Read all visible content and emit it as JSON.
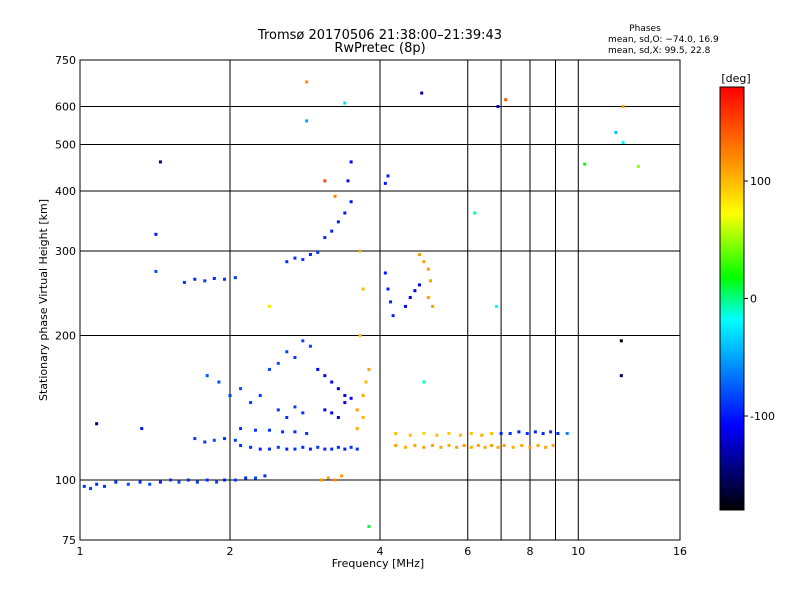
{
  "chart_data": {
    "type": "scatter",
    "title": "Tromsø 20170506 21:38:00–21:39:43",
    "subtitle": "RwPretec (8p)",
    "xlabel": "Frequency [MHz]",
    "ylabel": "Stationary phase Virtual Height [km]",
    "x_scale": "log",
    "y_scale": "log",
    "xlim": [
      1,
      16
    ],
    "ylim": [
      75,
      750
    ],
    "x_ticks": [
      1,
      2,
      4,
      6,
      8,
      10,
      16
    ],
    "x_gridlines": [
      2,
      4,
      6,
      7,
      8,
      9,
      10
    ],
    "y_ticks": [
      75,
      100,
      200,
      300,
      400,
      500,
      600,
      750
    ],
    "grid": true,
    "phase_stats": {
      "heading": "Phases",
      "line_o": "mean, sd,O:  −74.0, 16.9",
      "line_x": "mean, sd,X:   99.5, 22.8"
    },
    "colorbar": {
      "label": "[deg]",
      "range": [
        -180,
        180
      ],
      "ticks": [
        100,
        0,
        -100
      ],
      "colors": [
        "#ff0000",
        "#ffa500",
        "#ffff00",
        "#00ff00",
        "#00ffff",
        "#0064ff",
        "#0000ff",
        "#000000"
      ]
    },
    "series": [
      {
        "points": [
          [
            1.02,
            97,
            -90
          ],
          [
            1.05,
            96,
            -85
          ],
          [
            1.08,
            98,
            -95
          ],
          [
            1.12,
            97,
            -88
          ],
          [
            1.18,
            99,
            -92
          ],
          [
            1.25,
            98,
            -85
          ],
          [
            1.32,
            99,
            -90
          ],
          [
            1.38,
            98,
            -82
          ],
          [
            1.45,
            99,
            -95
          ],
          [
            1.52,
            100,
            -88
          ],
          [
            1.58,
            99,
            -80
          ],
          [
            1.65,
            100,
            -92
          ],
          [
            1.72,
            99,
            -86
          ],
          [
            1.8,
            100,
            -90
          ],
          [
            1.88,
            99,
            -84
          ],
          [
            1.95,
            100,
            -96
          ],
          [
            2.05,
            100,
            -88
          ],
          [
            2.15,
            101,
            -90
          ],
          [
            2.25,
            101,
            -82
          ],
          [
            2.35,
            102,
            -94
          ],
          [
            1.62,
            258,
            -90
          ],
          [
            1.7,
            262,
            -92
          ],
          [
            1.78,
            260,
            -88
          ],
          [
            1.86,
            263,
            -95
          ],
          [
            1.95,
            262,
            -90
          ],
          [
            2.05,
            264,
            -86
          ],
          [
            1.7,
            122,
            -85
          ],
          [
            1.78,
            120,
            -88
          ],
          [
            1.86,
            121,
            -82
          ],
          [
            1.95,
            122,
            -90
          ],
          [
            2.05,
            121,
            -86
          ],
          [
            2.1,
            118,
            -90
          ],
          [
            2.2,
            117,
            -92
          ],
          [
            2.3,
            116,
            -96
          ],
          [
            2.4,
            116,
            -90
          ],
          [
            2.5,
            117,
            -88
          ],
          [
            2.6,
            116,
            -94
          ],
          [
            2.7,
            116,
            -90
          ],
          [
            2.8,
            117,
            -92
          ],
          [
            2.9,
            116,
            -96
          ],
          [
            3.0,
            117,
            -88
          ],
          [
            3.1,
            116,
            -92
          ],
          [
            3.2,
            116,
            -90
          ],
          [
            3.3,
            117,
            -94
          ],
          [
            3.4,
            116,
            -96
          ],
          [
            3.5,
            117,
            -90
          ],
          [
            3.6,
            116,
            -92
          ],
          [
            2.1,
            128,
            -90
          ],
          [
            2.25,
            127,
            -88
          ],
          [
            2.4,
            127,
            -92
          ],
          [
            2.55,
            126,
            -90
          ],
          [
            2.7,
            126,
            -94
          ],
          [
            2.85,
            125,
            -90
          ],
          [
            1.8,
            165,
            -80
          ],
          [
            1.9,
            160,
            -82
          ],
          [
            2.0,
            150,
            -85
          ],
          [
            2.1,
            155,
            -80
          ],
          [
            2.2,
            145,
            -86
          ],
          [
            2.3,
            150,
            -84
          ],
          [
            2.4,
            170,
            -82
          ],
          [
            2.5,
            175,
            -80
          ],
          [
            2.6,
            185,
            -84
          ],
          [
            2.7,
            180,
            -86
          ],
          [
            2.8,
            195,
            -82
          ],
          [
            2.9,
            190,
            -84
          ],
          [
            2.5,
            140,
            -88
          ],
          [
            2.6,
            135,
            -90
          ],
          [
            2.7,
            142,
            -86
          ],
          [
            2.8,
            138,
            -88
          ],
          [
            2.6,
            285,
            -90
          ],
          [
            2.7,
            290,
            -92
          ],
          [
            2.8,
            288,
            -88
          ],
          [
            2.9,
            295,
            -95
          ],
          [
            3.0,
            298,
            -90
          ],
          [
            3.1,
            320,
            -92
          ],
          [
            3.2,
            330,
            -95
          ],
          [
            3.3,
            345,
            -96
          ],
          [
            3.4,
            360,
            -100
          ],
          [
            3.5,
            380,
            -102
          ],
          [
            3.45,
            420,
            -104
          ],
          [
            3.5,
            460,
            -108
          ],
          [
            3.0,
            170,
            -110
          ],
          [
            3.1,
            165,
            -108
          ],
          [
            3.2,
            160,
            -112
          ],
          [
            3.3,
            155,
            -110
          ],
          [
            3.4,
            150,
            -114
          ],
          [
            3.5,
            148,
            -110
          ],
          [
            3.1,
            140,
            -112
          ],
          [
            3.2,
            138,
            -110
          ],
          [
            3.3,
            135,
            -115
          ],
          [
            3.4,
            145,
            -112
          ],
          [
            4.1,
            270,
            -100
          ],
          [
            4.15,
            250,
            -98
          ],
          [
            4.2,
            235,
            -95
          ],
          [
            4.25,
            220,
            -96
          ],
          [
            4.1,
            415,
            -100
          ],
          [
            4.15,
            430,
            -98
          ],
          [
            4.6,
            240,
            -110
          ],
          [
            4.7,
            248,
            -108
          ],
          [
            4.8,
            255,
            -112
          ],
          [
            4.5,
            230,
            -105
          ],
          [
            3.6,
            140,
            110
          ],
          [
            3.7,
            150,
            105
          ],
          [
            3.75,
            160,
            100
          ],
          [
            3.8,
            170,
            108
          ],
          [
            3.7,
            135,
            102
          ],
          [
            3.6,
            128,
            106
          ],
          [
            3.65,
            200,
            95
          ],
          [
            3.7,
            250,
            100
          ],
          [
            3.65,
            300,
            104
          ],
          [
            3.05,
            100,
            115
          ],
          [
            3.15,
            101,
            110
          ],
          [
            3.25,
            100,
            118
          ],
          [
            3.35,
            102,
            112
          ],
          [
            4.8,
            295,
            112
          ],
          [
            4.9,
            285,
            110
          ],
          [
            5.0,
            275,
            115
          ],
          [
            5.05,
            260,
            112
          ],
          [
            5.0,
            240,
            110
          ],
          [
            5.1,
            230,
            108
          ],
          [
            4.3,
            118,
            110
          ],
          [
            4.5,
            117,
            105
          ],
          [
            4.7,
            118,
            108
          ],
          [
            4.9,
            117,
            112
          ],
          [
            5.1,
            118,
            110
          ],
          [
            5.3,
            117,
            108
          ],
          [
            5.5,
            118,
            104
          ],
          [
            5.7,
            117,
            110
          ],
          [
            5.9,
            118,
            112
          ],
          [
            6.1,
            117,
            106
          ],
          [
            6.3,
            118,
            110
          ],
          [
            6.5,
            117,
            108
          ],
          [
            6.7,
            118,
            112
          ],
          [
            6.9,
            117,
            106
          ],
          [
            7.1,
            118,
            110
          ],
          [
            7.4,
            117,
            104
          ],
          [
            7.7,
            118,
            108
          ],
          [
            8.0,
            117,
            112
          ],
          [
            8.3,
            118,
            106
          ],
          [
            8.6,
            117,
            110
          ],
          [
            8.9,
            118,
            108
          ],
          [
            4.3,
            125,
            95
          ],
          [
            4.6,
            124,
            100
          ],
          [
            4.9,
            125,
            90
          ],
          [
            5.2,
            124,
            98
          ],
          [
            5.5,
            125,
            92
          ],
          [
            5.8,
            124,
            100
          ],
          [
            6.1,
            125,
            96
          ],
          [
            6.4,
            124,
            104
          ],
          [
            6.7,
            125,
            98
          ],
          [
            7.0,
            125,
            -95
          ],
          [
            7.3,
            125,
            -92
          ],
          [
            7.6,
            126,
            -98
          ],
          [
            7.9,
            125,
            -90
          ],
          [
            8.2,
            126,
            -96
          ],
          [
            8.5,
            125,
            -94
          ],
          [
            8.8,
            126,
            -92
          ],
          [
            9.1,
            125,
            -96
          ],
          [
            9.5,
            125,
            -60
          ],
          [
            1.45,
            460,
            -140
          ],
          [
            1.42,
            325,
            -100
          ],
          [
            1.42,
            272,
            -80
          ],
          [
            1.33,
            128,
            -100
          ],
          [
            1.08,
            131,
            -150
          ],
          [
            2.85,
            675,
            120
          ],
          [
            3.4,
            610,
            -30
          ],
          [
            4.85,
            640,
            -130
          ],
          [
            6.9,
            600,
            -120
          ],
          [
            7.15,
            620,
            140
          ],
          [
            12.3,
            600,
            110
          ],
          [
            12.3,
            505,
            -20
          ],
          [
            11.9,
            530,
            -40
          ],
          [
            13.2,
            450,
            50
          ],
          [
            10.3,
            455,
            20
          ],
          [
            12.2,
            195,
            -180
          ],
          [
            12.2,
            165,
            -150
          ],
          [
            6.2,
            360,
            0
          ],
          [
            4.9,
            160,
            -10
          ],
          [
            3.8,
            80,
            10
          ],
          [
            3.1,
            420,
            150
          ],
          [
            3.25,
            390,
            120
          ],
          [
            2.85,
            560,
            -50
          ],
          [
            2.4,
            230,
            80
          ],
          [
            6.85,
            230,
            -20
          ]
        ]
      }
    ]
  }
}
